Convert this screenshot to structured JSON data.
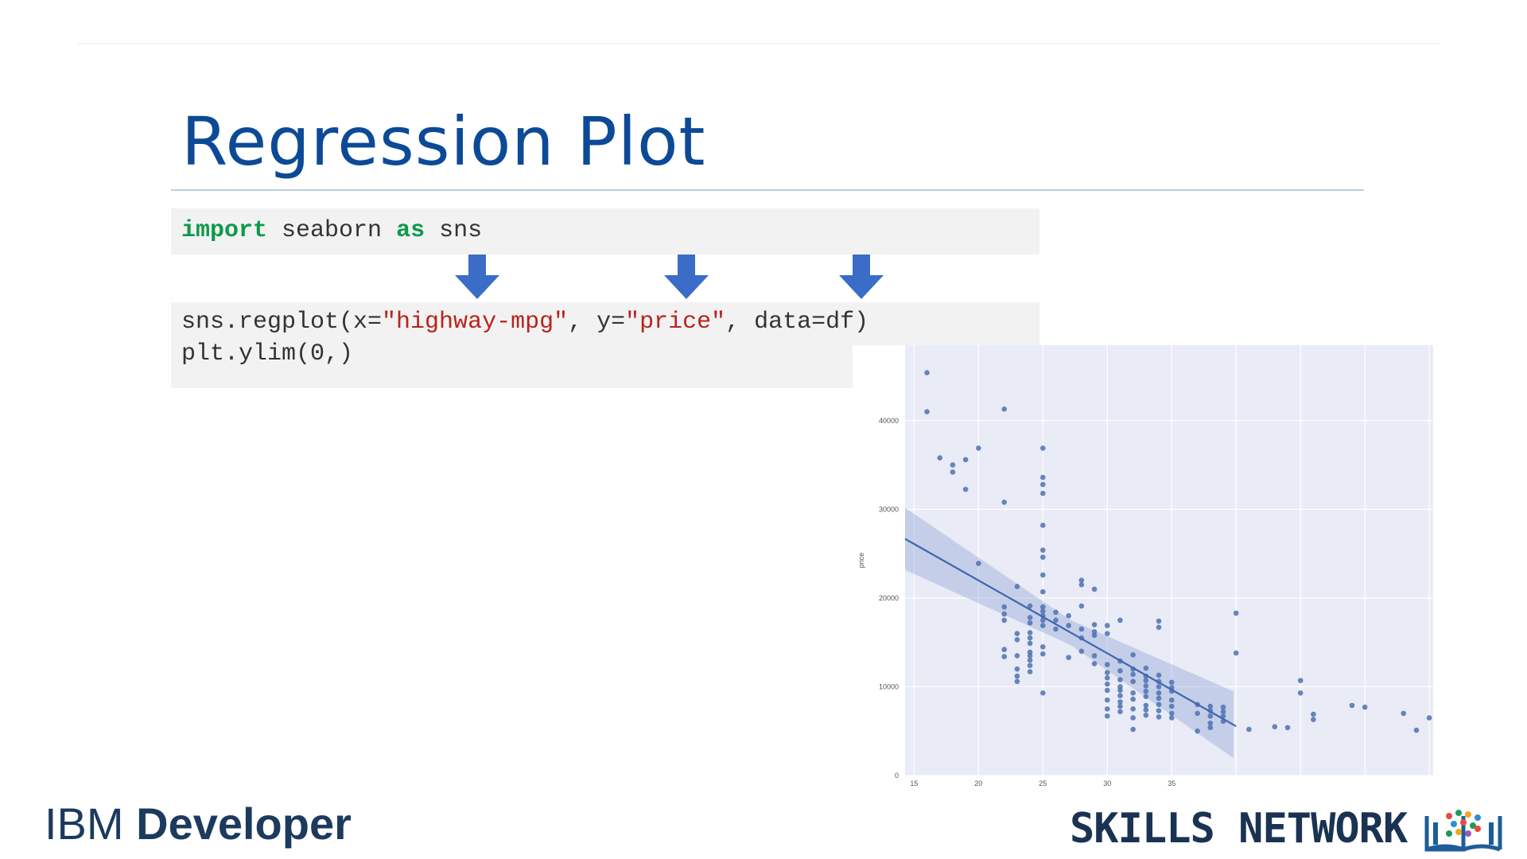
{
  "slide": {
    "title": "Regression Plot",
    "code": {
      "import_keyword": "import",
      "import_module": " seaborn ",
      "as_keyword": "as",
      "import_alias": " sns",
      "call_prefix": "sns.regplot(x=",
      "x_value": "\"highway-mpg\"",
      "y_sep": ", y=",
      "y_value": "\"price\"",
      "call_suffix": ", data=df)",
      "line2": "plt.ylim(0,)"
    },
    "colors": {
      "title": "#0c4a97",
      "arrow": "#3a6cc8",
      "keyword": "#0d9a4a",
      "string": "#b8231d"
    },
    "icons": [
      "arrow-down-icon",
      "skills-network-logo-icon"
    ]
  },
  "footer": {
    "ibm_part": "IBM ",
    "developer_part": "Developer",
    "skills_network": "SKILLS NETWORK"
  },
  "chart_data": {
    "type": "scatter",
    "title": "",
    "xlabel": "",
    "ylabel": "price",
    "xlim": [
      14.3,
      55.3
    ],
    "ylim": [
      0,
      48500
    ],
    "grid": true,
    "x_ticks": [
      15,
      20,
      25,
      30,
      35
    ],
    "y_ticks": [
      0,
      10000,
      20000,
      30000,
      40000
    ],
    "regression": {
      "intercept": 38423,
      "slope": -821.7,
      "ci": [
        3500,
        1400,
        3800
      ]
    },
    "points": [
      [
        16,
        45400
      ],
      [
        16,
        41000
      ],
      [
        17,
        35800
      ],
      [
        18,
        35000
      ],
      [
        18,
        34200
      ],
      [
        19,
        35600
      ],
      [
        19,
        32250
      ],
      [
        20,
        36900
      ],
      [
        22,
        41300
      ],
      [
        22,
        30800
      ],
      [
        20,
        23900
      ],
      [
        22,
        19000
      ],
      [
        22,
        18200
      ],
      [
        22,
        17500
      ],
      [
        22,
        14200
      ],
      [
        22,
        13400
      ],
      [
        23,
        21300
      ],
      [
        23,
        16000
      ],
      [
        23,
        15300
      ],
      [
        23,
        13500
      ],
      [
        23,
        12000
      ],
      [
        23,
        11200
      ],
      [
        23,
        10600
      ],
      [
        24,
        19100
      ],
      [
        24,
        17200
      ],
      [
        24,
        16100
      ],
      [
        24,
        15500
      ],
      [
        24,
        14900
      ],
      [
        24,
        13500
      ],
      [
        24,
        13000
      ],
      [
        24,
        12400
      ],
      [
        24,
        11700
      ],
      [
        24,
        17800
      ],
      [
        24,
        13900
      ],
      [
        25,
        36900
      ],
      [
        25,
        33600
      ],
      [
        25,
        32800
      ],
      [
        25,
        31800
      ],
      [
        25,
        28200
      ],
      [
        25,
        25400
      ],
      [
        25,
        24600
      ],
      [
        25,
        22600
      ],
      [
        25,
        20700
      ],
      [
        25,
        19000
      ],
      [
        25,
        18500
      ],
      [
        25,
        18000
      ],
      [
        25,
        17500
      ],
      [
        25,
        16900
      ],
      [
        25,
        14500
      ],
      [
        25,
        13700
      ],
      [
        25,
        9300
      ],
      [
        26,
        18400
      ],
      [
        26,
        17500
      ],
      [
        26,
        16500
      ],
      [
        27,
        18000
      ],
      [
        27,
        16900
      ],
      [
        27,
        13300
      ],
      [
        28,
        22000
      ],
      [
        28,
        21500
      ],
      [
        28,
        19100
      ],
      [
        28,
        16500
      ],
      [
        28,
        15500
      ],
      [
        28,
        14000
      ],
      [
        29,
        21000
      ],
      [
        29,
        17000
      ],
      [
        29,
        16200
      ],
      [
        29,
        15800
      ],
      [
        29,
        13500
      ],
      [
        29,
        12600
      ],
      [
        30,
        16900
      ],
      [
        30,
        16000
      ],
      [
        30,
        12500
      ],
      [
        30,
        11600
      ],
      [
        30,
        11000
      ],
      [
        30,
        10300
      ],
      [
        30,
        9600
      ],
      [
        30,
        8500
      ],
      [
        30,
        7500
      ],
      [
        30,
        6700
      ],
      [
        31,
        17500
      ],
      [
        31,
        12900
      ],
      [
        31,
        11800
      ],
      [
        31,
        10800
      ],
      [
        31,
        10000
      ],
      [
        31,
        9600
      ],
      [
        31,
        9000
      ],
      [
        31,
        8300
      ],
      [
        31,
        7800
      ],
      [
        31,
        7200
      ],
      [
        32,
        13600
      ],
      [
        32,
        12000
      ],
      [
        32,
        11400
      ],
      [
        32,
        10600
      ],
      [
        32,
        9300
      ],
      [
        32,
        8600
      ],
      [
        32,
        7500
      ],
      [
        32,
        6500
      ],
      [
        32,
        5200
      ],
      [
        33,
        12100
      ],
      [
        33,
        11200
      ],
      [
        33,
        10700
      ],
      [
        33,
        10100
      ],
      [
        33,
        9500
      ],
      [
        33,
        8900
      ],
      [
        33,
        7900
      ],
      [
        33,
        7400
      ],
      [
        33,
        6800
      ],
      [
        34,
        17400
      ],
      [
        34,
        16700
      ],
      [
        34,
        11300
      ],
      [
        34,
        10600
      ],
      [
        34,
        10000
      ],
      [
        34,
        9300
      ],
      [
        34,
        8700
      ],
      [
        34,
        8000
      ],
      [
        34,
        7300
      ],
      [
        34,
        6600
      ],
      [
        35,
        10500
      ],
      [
        35,
        9900
      ],
      [
        35,
        9500
      ],
      [
        35,
        8500
      ],
      [
        35,
        7800
      ],
      [
        35,
        7000
      ],
      [
        35,
        6500
      ],
      [
        37,
        8000
      ],
      [
        37,
        7000
      ],
      [
        37,
        5000
      ],
      [
        38,
        7800
      ],
      [
        38,
        7300
      ],
      [
        38,
        6700
      ],
      [
        38,
        5900
      ],
      [
        38,
        5400
      ],
      [
        39,
        7700
      ],
      [
        39,
        7200
      ],
      [
        39,
        6700
      ],
      [
        39,
        6100
      ],
      [
        40,
        18300
      ],
      [
        40,
        13800
      ],
      [
        41,
        5200
      ],
      [
        43,
        5500
      ],
      [
        44,
        5400
      ],
      [
        45,
        10700
      ],
      [
        45,
        9300
      ],
      [
        46,
        6300
      ],
      [
        46,
        6900
      ],
      [
        49,
        7900
      ],
      [
        50,
        7700
      ],
      [
        53,
        7000
      ],
      [
        54,
        5100
      ],
      [
        55,
        6500
      ]
    ]
  }
}
